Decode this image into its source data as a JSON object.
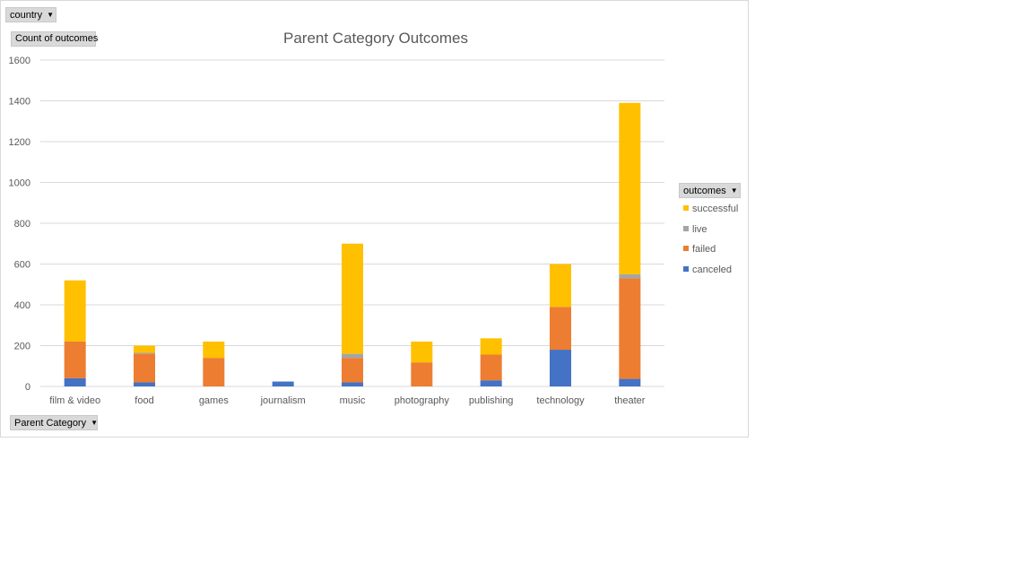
{
  "filters": {
    "country_label": "country"
  },
  "value_field_label": "Count of outcomes",
  "axis_field_label": "Parent Category",
  "legend_field_label": "outcomes",
  "colors": {
    "successful": "#ffc000",
    "live": "#a5a5a5",
    "failed": "#ed7d31",
    "canceled": "#4472c4",
    "grid": "#d9d9d9"
  },
  "chart_data": {
    "type": "bar",
    "stacked": true,
    "title": "Parent Category Outcomes",
    "xlabel": "",
    "ylabel": "",
    "ylim": [
      0,
      1600
    ],
    "yticks": [
      0,
      200,
      400,
      600,
      800,
      1000,
      1200,
      1400,
      1600
    ],
    "grid": true,
    "legend_position": "right",
    "categories": [
      "film & video",
      "food",
      "games",
      "journalism",
      "music",
      "photography",
      "publishing",
      "technology",
      "theater"
    ],
    "series": [
      {
        "name": "canceled",
        "values": [
          40,
          20,
          0,
          24,
          20,
          0,
          30,
          180,
          37
        ]
      },
      {
        "name": "failed",
        "values": [
          180,
          140,
          140,
          0,
          120,
          118,
          126,
          210,
          493
        ]
      },
      {
        "name": "live",
        "values": [
          0,
          5,
          0,
          0,
          20,
          0,
          0,
          0,
          20
        ]
      },
      {
        "name": "successful",
        "values": [
          300,
          35,
          80,
          0,
          540,
          102,
          80,
          210,
          840
        ]
      }
    ],
    "legend_order": [
      "successful",
      "live",
      "failed",
      "canceled"
    ]
  }
}
